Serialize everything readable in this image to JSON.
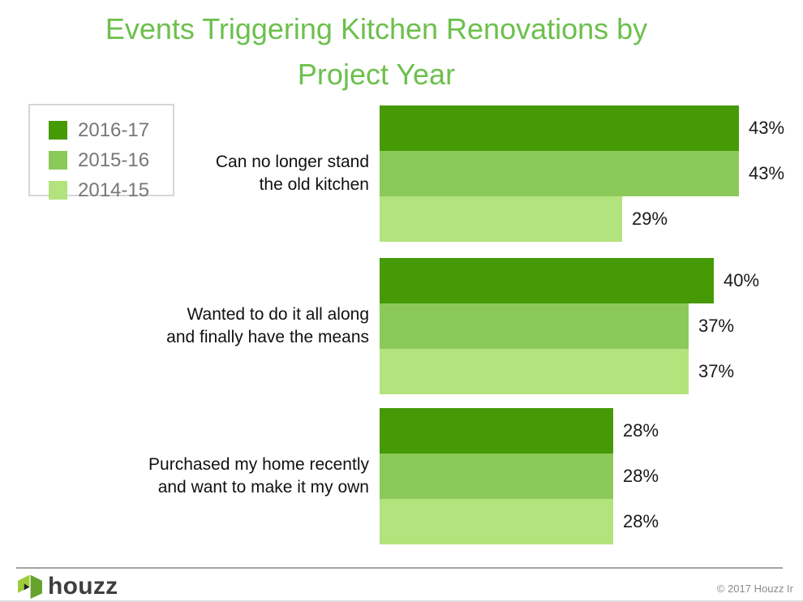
{
  "title": {
    "line1": "Events Triggering Kitchen Renovations by",
    "line2": "Project Year"
  },
  "chart_data": {
    "type": "bar",
    "orientation": "horizontal",
    "title": "Events Triggering Kitchen Renovations by Project Year",
    "categories": [
      "Can no longer stand\nthe old kitchen",
      "Wanted to do it all along\nand finally have the means",
      "Purchased my home recently\nand want to make it my own"
    ],
    "series": [
      {
        "name": "2016-17",
        "color": "#459A06",
        "values": [
          43,
          40,
          28
        ]
      },
      {
        "name": "2015-16",
        "color": "#8CC95B",
        "values": [
          43,
          37,
          28
        ]
      },
      {
        "name": "2014-15",
        "color": "#B3E37D",
        "values": [
          29,
          37,
          28
        ]
      }
    ],
    "value_suffix": "%",
    "xlim": [
      0,
      50
    ],
    "grid": false,
    "legend_position": "top-left",
    "value_labels": "outside-end"
  },
  "footer": {
    "brand": "houzz",
    "copyright": "© 2017 Houzz Ir"
  },
  "colors": {
    "title_green": "#6CC04C",
    "legend_text": "#777777",
    "value_text": "#1A1A1A",
    "logo_light": "#9CCB3C",
    "logo_dark": "#67A22F"
  }
}
